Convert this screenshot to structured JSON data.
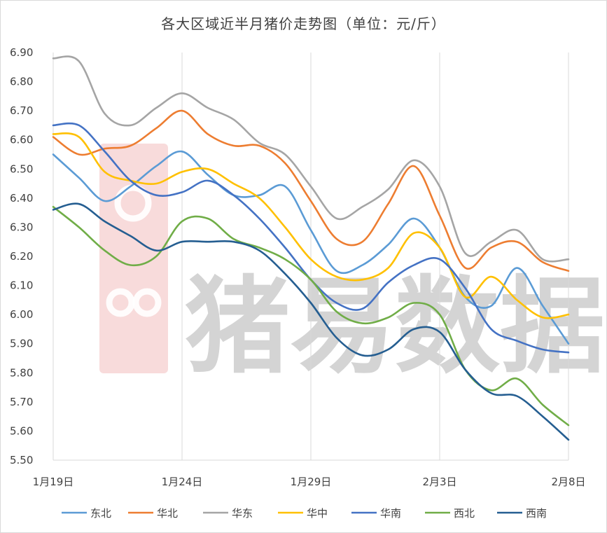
{
  "chart_data": {
    "type": "line",
    "title": "各大区域近半月猪价走势图（单位：元/斤）",
    "xlabel": "",
    "ylabel": "",
    "ylim": [
      5.5,
      6.9
    ],
    "ytick_labels": [
      "5.50",
      "5.60",
      "5.70",
      "5.80",
      "5.90",
      "6.00",
      "6.10",
      "6.20",
      "6.30",
      "6.40",
      "6.50",
      "6.60",
      "6.70",
      "6.80",
      "6.90"
    ],
    "x_tick_labels": [
      "1月19日",
      "1月24日",
      "1月29日",
      "2月3日",
      "2月8日"
    ],
    "x_tick_index": [
      0,
      5,
      10,
      15,
      20
    ],
    "grid": "vertical",
    "legend_position": "bottom",
    "watermark_text": "猪易数据",
    "series": [
      {
        "name": "东北",
        "color": "#5B9BD5",
        "values": [
          6.55,
          6.47,
          6.39,
          6.44,
          6.51,
          6.56,
          6.48,
          6.41,
          6.41,
          6.44,
          6.29,
          6.15,
          6.17,
          6.24,
          6.33,
          6.23,
          6.06,
          6.03,
          6.16,
          6.03,
          5.9
        ]
      },
      {
        "name": "华北",
        "color": "#ED7D31",
        "values": [
          6.61,
          6.55,
          6.57,
          6.58,
          6.64,
          6.7,
          6.62,
          6.58,
          6.58,
          6.52,
          6.39,
          6.26,
          6.25,
          6.38,
          6.51,
          6.34,
          6.16,
          6.23,
          6.25,
          6.18,
          6.15
        ]
      },
      {
        "name": "华东",
        "color": "#A5A5A5",
        "values": [
          6.88,
          6.87,
          6.69,
          6.65,
          6.71,
          6.76,
          6.71,
          6.67,
          6.59,
          6.55,
          6.44,
          6.33,
          6.37,
          6.43,
          6.53,
          6.44,
          6.21,
          6.25,
          6.29,
          6.19,
          6.19
        ]
      },
      {
        "name": "华中",
        "color": "#FFC000",
        "values": [
          6.62,
          6.61,
          6.49,
          6.46,
          6.45,
          6.49,
          6.5,
          6.45,
          6.4,
          6.3,
          6.19,
          6.13,
          6.12,
          6.16,
          6.28,
          6.23,
          6.06,
          6.13,
          6.05,
          5.99,
          6.0
        ]
      },
      {
        "name": "华南",
        "color": "#4472C4",
        "values": [
          6.65,
          6.65,
          6.56,
          6.46,
          6.41,
          6.42,
          6.46,
          6.41,
          6.33,
          6.23,
          6.12,
          6.04,
          6.02,
          6.11,
          6.17,
          6.19,
          6.09,
          5.95,
          5.91,
          5.88,
          5.87
        ]
      },
      {
        "name": "西北",
        "color": "#70AD47",
        "values": [
          6.37,
          6.3,
          6.22,
          6.17,
          6.2,
          6.32,
          6.33,
          6.26,
          6.23,
          6.19,
          6.12,
          6.01,
          5.97,
          5.99,
          6.04,
          6.0,
          5.81,
          5.74,
          5.78,
          5.69,
          5.62
        ]
      },
      {
        "name": "西南",
        "color": "#255E91",
        "values": [
          6.36,
          6.38,
          6.32,
          6.27,
          6.22,
          6.25,
          6.25,
          6.25,
          6.22,
          6.14,
          6.04,
          5.92,
          5.86,
          5.88,
          5.95,
          5.94,
          5.81,
          5.73,
          5.72,
          5.65,
          5.57
        ]
      }
    ]
  }
}
